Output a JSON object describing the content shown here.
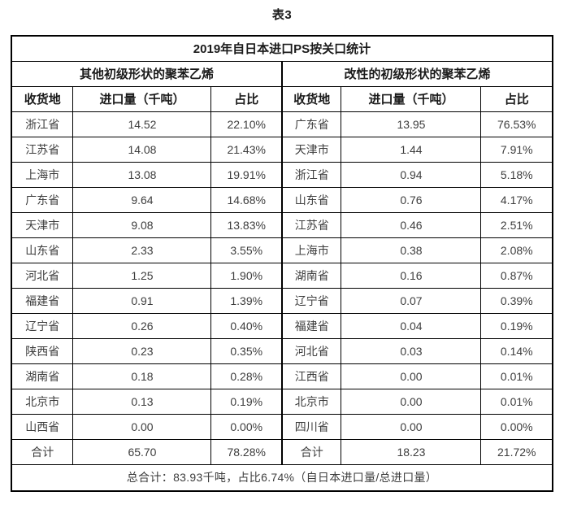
{
  "page_title": "表3",
  "table": {
    "title": "2019年自日本进口PS按关口统计",
    "section_left_title": "其他初级形状的聚苯乙烯",
    "section_right_title": "改性的初级形状的聚苯乙烯",
    "columns": {
      "region": "收货地",
      "qty": "进口量（千吨）",
      "pct": "占比"
    },
    "rows": [
      {
        "l_region": "浙江省",
        "l_qty": "14.52",
        "l_pct": "22.10%",
        "r_region": "广东省",
        "r_qty": "13.95",
        "r_pct": "76.53%"
      },
      {
        "l_region": "江苏省",
        "l_qty": "14.08",
        "l_pct": "21.43%",
        "r_region": "天津市",
        "r_qty": "1.44",
        "r_pct": "7.91%"
      },
      {
        "l_region": "上海市",
        "l_qty": "13.08",
        "l_pct": "19.91%",
        "r_region": "浙江省",
        "r_qty": "0.94",
        "r_pct": "5.18%"
      },
      {
        "l_region": "广东省",
        "l_qty": "9.64",
        "l_pct": "14.68%",
        "r_region": "山东省",
        "r_qty": "0.76",
        "r_pct": "4.17%"
      },
      {
        "l_region": "天津市",
        "l_qty": "9.08",
        "l_pct": "13.83%",
        "r_region": "江苏省",
        "r_qty": "0.46",
        "r_pct": "2.51%"
      },
      {
        "l_region": "山东省",
        "l_qty": "2.33",
        "l_pct": "3.55%",
        "r_region": "上海市",
        "r_qty": "0.38",
        "r_pct": "2.08%"
      },
      {
        "l_region": "河北省",
        "l_qty": "1.25",
        "l_pct": "1.90%",
        "r_region": "湖南省",
        "r_qty": "0.16",
        "r_pct": "0.87%"
      },
      {
        "l_region": "福建省",
        "l_qty": "0.91",
        "l_pct": "1.39%",
        "r_region": "辽宁省",
        "r_qty": "0.07",
        "r_pct": "0.39%"
      },
      {
        "l_region": "辽宁省",
        "l_qty": "0.26",
        "l_pct": "0.40%",
        "r_region": "福建省",
        "r_qty": "0.04",
        "r_pct": "0.19%"
      },
      {
        "l_region": "陕西省",
        "l_qty": "0.23",
        "l_pct": "0.35%",
        "r_region": "河北省",
        "r_qty": "0.03",
        "r_pct": "0.14%"
      },
      {
        "l_region": "湖南省",
        "l_qty": "0.18",
        "l_pct": "0.28%",
        "r_region": "江西省",
        "r_qty": "0.00",
        "r_pct": "0.01%"
      },
      {
        "l_region": "北京市",
        "l_qty": "0.13",
        "l_pct": "0.19%",
        "r_region": "北京市",
        "r_qty": "0.00",
        "r_pct": "0.01%"
      },
      {
        "l_region": "山西省",
        "l_qty": "0.00",
        "l_pct": "0.00%",
        "r_region": "四川省",
        "r_qty": "0.00",
        "r_pct": "0.00%"
      }
    ],
    "total_row": {
      "l_label": "合计",
      "l_qty": "65.70",
      "l_pct": "78.28%",
      "r_label": "合计",
      "r_qty": "18.23",
      "r_pct": "21.72%"
    },
    "grand_total": "总合计：83.93千吨，占比6.74%（自日本进口量/总进口量）"
  }
}
